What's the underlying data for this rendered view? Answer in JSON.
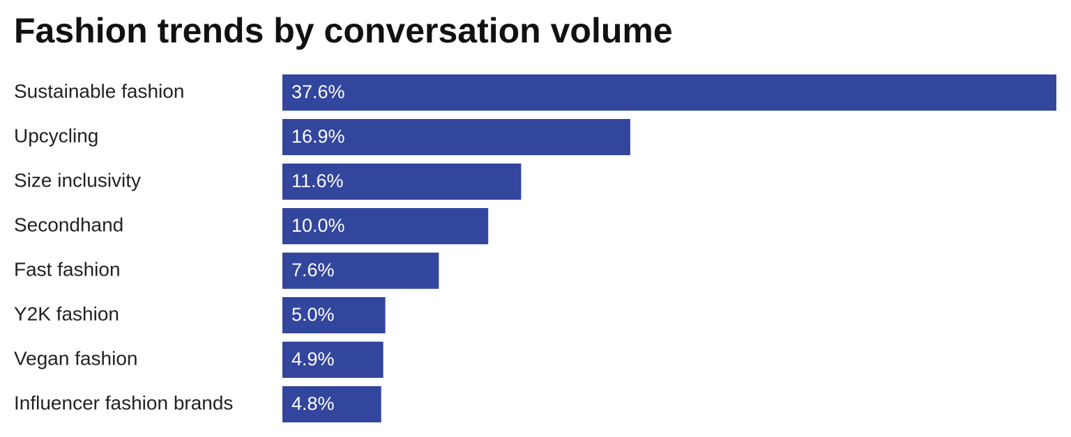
{
  "chart_data": {
    "type": "bar",
    "orientation": "horizontal",
    "title": "Fashion trends by conversation volume",
    "categories": [
      "Sustainable fashion",
      "Upcycling",
      "Size inclusivity",
      "Secondhand",
      "Fast fashion",
      "Y2K fashion",
      "Vegan fashion",
      "Influencer fashion brands"
    ],
    "values": [
      37.6,
      16.9,
      11.6,
      10.0,
      7.6,
      5.0,
      4.9,
      4.8
    ],
    "value_labels": [
      "37.6%",
      "16.9%",
      "11.6%",
      "10.0%",
      "7.6%",
      "5.0%",
      "4.9%",
      "4.8%"
    ],
    "color": "#33469d"
  }
}
